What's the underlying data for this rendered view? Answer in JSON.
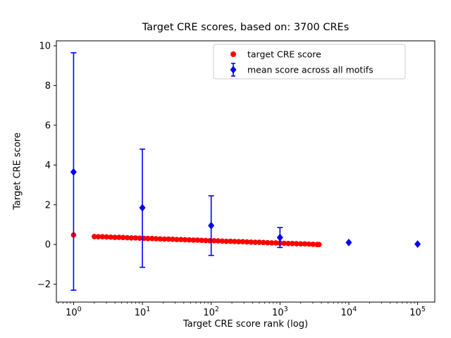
{
  "chart_data": {
    "type": "scatter",
    "title": "Target CRE scores, based on: 3700 CREs",
    "xlabel": "Target CRE score rank (log)",
    "ylabel": "Target CRE score",
    "x_scale": "log",
    "xlim_log10": [
      -0.25,
      5.25
    ],
    "ylim": [
      -2.9,
      10.25
    ],
    "grid": false,
    "legend_position": "upper center",
    "colors": {
      "target_series": "#ff0000",
      "mean_series": "#0000ff",
      "axis": "#000000",
      "legend_border": "#cccccc",
      "background": "#ffffff"
    },
    "x_ticks": [
      {
        "value": 1,
        "exp": "0"
      },
      {
        "value": 10,
        "exp": "1"
      },
      {
        "value": 100,
        "exp": "2"
      },
      {
        "value": 1000,
        "exp": "3"
      },
      {
        "value": 10000,
        "exp": "4"
      },
      {
        "value": 100000,
        "exp": "5"
      }
    ],
    "y_ticks": [
      -2,
      0,
      2,
      4,
      6,
      8,
      10
    ],
    "series": [
      {
        "name": "target CRE score",
        "type": "scatter",
        "marker": "circle",
        "color": "#ff0000",
        "points": [
          [
            1,
            0.48
          ],
          [
            2,
            0.4
          ],
          [
            2.29,
            0.39
          ],
          [
            2.63,
            0.39
          ],
          [
            3.02,
            0.38
          ],
          [
            3.47,
            0.37
          ],
          [
            3.98,
            0.36
          ],
          [
            4.57,
            0.36
          ],
          [
            5.25,
            0.35
          ],
          [
            6.03,
            0.34
          ],
          [
            6.92,
            0.33
          ],
          [
            7.94,
            0.33
          ],
          [
            9.12,
            0.32
          ],
          [
            10.5,
            0.31
          ],
          [
            12,
            0.3
          ],
          [
            13.8,
            0.3
          ],
          [
            15.8,
            0.29
          ],
          [
            18.2,
            0.28
          ],
          [
            20.9,
            0.27
          ],
          [
            24,
            0.27
          ],
          [
            27.5,
            0.26
          ],
          [
            31.6,
            0.25
          ],
          [
            36.3,
            0.25
          ],
          [
            41.7,
            0.24
          ],
          [
            47.9,
            0.23
          ],
          [
            55,
            0.22
          ],
          [
            63.1,
            0.22
          ],
          [
            72.4,
            0.21
          ],
          [
            83.2,
            0.2
          ],
          [
            95.5,
            0.19
          ],
          [
            110,
            0.19
          ],
          [
            126,
            0.18
          ],
          [
            145,
            0.17
          ],
          [
            166,
            0.16
          ],
          [
            191,
            0.16
          ],
          [
            219,
            0.15
          ],
          [
            251,
            0.14
          ],
          [
            288,
            0.14
          ],
          [
            331,
            0.13
          ],
          [
            380,
            0.12
          ],
          [
            437,
            0.11
          ],
          [
            501,
            0.11
          ],
          [
            575,
            0.1
          ],
          [
            661,
            0.09
          ],
          [
            759,
            0.08
          ],
          [
            871,
            0.08
          ],
          [
            1000,
            0.07
          ],
          [
            1148,
            0.06
          ],
          [
            1318,
            0.05
          ],
          [
            1514,
            0.05
          ],
          [
            1738,
            0.04
          ],
          [
            1995,
            0.03
          ],
          [
            2291,
            0.03
          ],
          [
            2630,
            0.02
          ],
          [
            3020,
            0.01
          ],
          [
            3467,
            0.0
          ],
          [
            3700,
            0.0
          ]
        ]
      },
      {
        "name": "mean score across all motifs",
        "type": "errorbar",
        "marker": "diamond",
        "color": "#0000ff",
        "points": [
          {
            "x": 1,
            "y": 3.65,
            "lo": -2.3,
            "hi": 9.65
          },
          {
            "x": 10,
            "y": 1.85,
            "lo": -1.15,
            "hi": 4.8
          },
          {
            "x": 100,
            "y": 0.95,
            "lo": -0.55,
            "hi": 2.45
          },
          {
            "x": 1000,
            "y": 0.35,
            "lo": -0.15,
            "hi": 0.85
          },
          {
            "x": 10000,
            "y": 0.1,
            "lo": 0.1,
            "hi": 0.1
          },
          {
            "x": 100000,
            "y": 0.02,
            "lo": 0.02,
            "hi": 0.02
          }
        ]
      }
    ]
  }
}
